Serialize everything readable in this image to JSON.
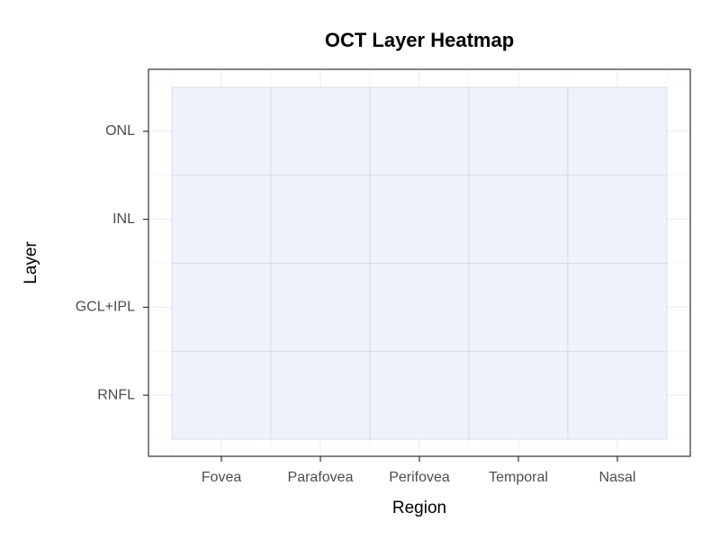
{
  "chart_data": {
    "type": "heatmap",
    "title": "OCT Layer Heatmap",
    "x_label": "Region",
    "y_label": "Layer",
    "x_categories": [
      "Fovea",
      "Parafovea",
      "Perifovea",
      "Temporal",
      "Nasal"
    ],
    "y_categories": [
      "RNFL",
      "GCL+IPL",
      "INL",
      "ONL"
    ],
    "color": "#eef2fd",
    "grid": true
  }
}
